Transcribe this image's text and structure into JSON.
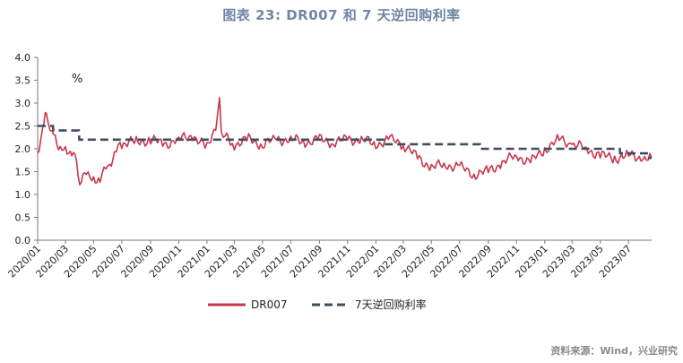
{
  "title": "图表 23: DR007 和 7 天逆回购利率",
  "source": "资料来源：Wind，兴业研究",
  "chart_data": {
    "type": "line",
    "ylabel": "%",
    "ylim": [
      0,
      4
    ],
    "yticks": [
      "0.0",
      "0.5",
      "1.0",
      "1.5",
      "2.0",
      "2.5",
      "3.0",
      "3.5",
      "4.0"
    ],
    "xticks": [
      "2020/01",
      "2020/03",
      "2020/05",
      "2020/07",
      "2020/09",
      "2020/11",
      "2021/01",
      "2021/03",
      "2021/05",
      "2021/07",
      "2021/09",
      "2021/11",
      "2022/01",
      "2022/03",
      "2022/05",
      "2022/07",
      "2022/09",
      "2022/11",
      "2023/01",
      "2023/03",
      "2023/05",
      "2023/07"
    ],
    "x_start": "2020/01",
    "legend_position": "bottom",
    "series": [
      {
        "name": "DR007",
        "color": "#c8374a",
        "style": "solid",
        "points": [
          [
            "2020/01",
            1.9
          ],
          [
            "2020/01/15",
            2.6
          ],
          [
            "2020/01/20",
            2.75
          ],
          [
            "2020/02",
            2.4
          ],
          [
            "2020/02/15",
            2.0
          ],
          [
            "2020/03",
            2.0
          ],
          [
            "2020/03/15",
            1.9
          ],
          [
            "2020/03/25",
            1.7
          ],
          [
            "2020/04",
            1.2
          ],
          [
            "2020/04/15",
            1.5
          ],
          [
            "2020/05",
            1.3
          ],
          [
            "2020/05/15",
            1.35
          ],
          [
            "2020/06",
            1.6
          ],
          [
            "2020/06/15",
            1.9
          ],
          [
            "2020/07",
            2.1
          ],
          [
            "2020/08",
            2.15
          ],
          [
            "2020/09",
            2.2
          ],
          [
            "2020/10",
            2.1
          ],
          [
            "2020/11",
            2.2
          ],
          [
            "2020/12",
            2.3
          ],
          [
            "2021/01",
            2.0
          ],
          [
            "2021/01/20",
            2.5
          ],
          [
            "2021/01/28",
            3.1
          ],
          [
            "2021/02",
            2.3
          ],
          [
            "2021/03",
            2.1
          ],
          [
            "2021/04",
            2.2
          ],
          [
            "2021/05",
            2.1
          ],
          [
            "2021/06",
            2.2
          ],
          [
            "2021/07",
            2.2
          ],
          [
            "2021/08",
            2.15
          ],
          [
            "2021/09",
            2.2
          ],
          [
            "2021/10",
            2.15
          ],
          [
            "2021/11",
            2.2
          ],
          [
            "2021/12",
            2.2
          ],
          [
            "2022/01",
            2.1
          ],
          [
            "2022/02",
            2.2
          ],
          [
            "2022/03",
            2.1
          ],
          [
            "2022/04",
            1.8
          ],
          [
            "2022/05",
            1.6
          ],
          [
            "2022/06",
            1.65
          ],
          [
            "2022/07",
            1.6
          ],
          [
            "2022/08",
            1.45
          ],
          [
            "2022/09",
            1.5
          ],
          [
            "2022/10",
            1.7
          ],
          [
            "2022/11",
            1.85
          ],
          [
            "2022/12",
            1.7
          ],
          [
            "2023/01",
            2.0
          ],
          [
            "2023/02",
            2.2
          ],
          [
            "2023/03",
            2.1
          ],
          [
            "2023/04",
            2.0
          ],
          [
            "2023/05",
            1.85
          ],
          [
            "2023/06",
            1.8
          ],
          [
            "2023/07",
            1.85
          ],
          [
            "2023/08",
            1.8
          ],
          [
            "2023/08/20",
            1.8
          ]
        ]
      },
      {
        "name": "7天逆回购利率",
        "color": "#3e4d63",
        "style": "dashed",
        "points": [
          [
            "2020/01",
            2.5
          ],
          [
            "2020/02/03",
            2.5
          ],
          [
            "2020/02/04",
            2.4
          ],
          [
            "2020/03/30",
            2.4
          ],
          [
            "2020/03/31",
            2.2
          ],
          [
            "2022/01/17",
            2.2
          ],
          [
            "2022/01/18",
            2.1
          ],
          [
            "2022/08/14",
            2.1
          ],
          [
            "2022/08/15",
            2.0
          ],
          [
            "2023/06/12",
            2.0
          ],
          [
            "2023/06/13",
            1.9
          ],
          [
            "2023/08/14",
            1.9
          ],
          [
            "2023/08/15",
            1.8
          ],
          [
            "2023/08/20",
            1.8
          ]
        ]
      }
    ]
  }
}
